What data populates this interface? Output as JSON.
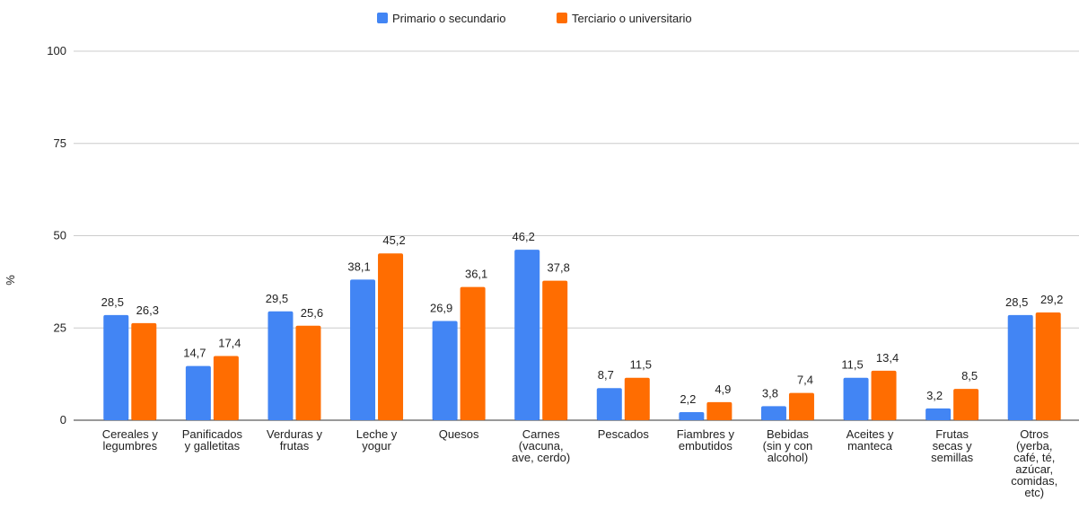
{
  "chart_data": {
    "type": "bar",
    "y_label": "%",
    "categories": [
      "Cereales y\nlegumbres",
      "Panificados\ny galletitas",
      "Verduras y\nfrutas",
      "Leche y\nyogur",
      "Quesos",
      "Carnes\n(vacuna,\nave, cerdo)",
      "Pescados",
      "Fiambres y\nembutidos",
      "Bebidas\n(sin y con\nalcohol)",
      "Aceites y\nmanteca",
      "Frutas\nsecas y\nsemillas",
      "Otros\n(yerba,\ncafé, té,\nazúcar,\ncomidas,\netc)"
    ],
    "series": [
      {
        "name": "Primario o secundario",
        "color": "#4285f4",
        "values": [
          28.5,
          14.7,
          29.5,
          38.1,
          26.9,
          46.2,
          8.7,
          2.2,
          3.8,
          11.5,
          3.2,
          28.5
        ],
        "value_labels": [
          "28,5",
          "14,7",
          "29,5",
          "38,1",
          "26,9",
          "46,2",
          "8,7",
          "2,2",
          "3,8",
          "11,5",
          "3,2",
          "28,5"
        ]
      },
      {
        "name": "Terciario o universitario",
        "color": "#ff6d01",
        "values": [
          26.3,
          17.4,
          25.6,
          45.2,
          36.1,
          37.8,
          11.5,
          4.9,
          7.4,
          13.4,
          8.5,
          29.2
        ],
        "value_labels": [
          "26,3",
          "17,4",
          "25,6",
          "45,2",
          "36,1",
          "37,8",
          "11,5",
          "4,9",
          "7,4",
          "13,4",
          "8,5",
          "29,2"
        ]
      }
    ],
    "ylim": [
      0,
      100
    ],
    "yticks": [
      0,
      25,
      50,
      75,
      100
    ],
    "grid": true,
    "legend": "top"
  }
}
